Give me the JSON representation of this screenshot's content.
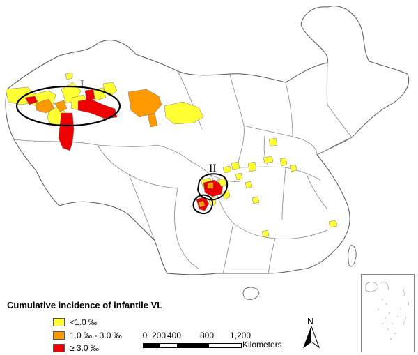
{
  "map": {
    "clusters": [
      {
        "id": "I",
        "label": "I"
      },
      {
        "id": "II",
        "label": "II"
      }
    ]
  },
  "legend": {
    "title": "Cumulative incidence of infantile VL",
    "items": [
      {
        "label": "<1.0 ‰",
        "color": "#ffff33"
      },
      {
        "label": "1.0 ‰ - 3.0 ‰",
        "color": "#ff9900"
      },
      {
        "label": "≥ 3.0 ‰",
        "color": "#ee0000"
      }
    ]
  },
  "scalebar": {
    "ticks": [
      "0",
      "200",
      "400",
      "800",
      "1,200"
    ],
    "unit": "Kilometers"
  },
  "north_arrow": {
    "label": "N",
    "icon": "north-arrow-icon"
  }
}
